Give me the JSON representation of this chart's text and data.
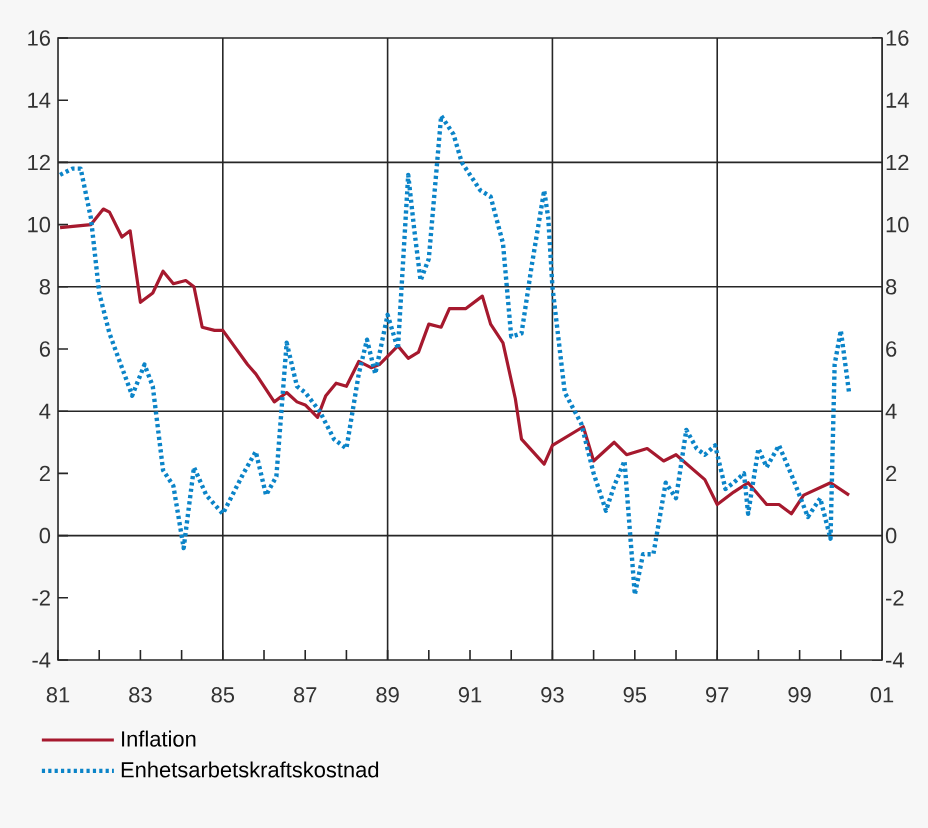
{
  "chart_data": {
    "type": "line",
    "xlim": [
      1981,
      2001
    ],
    "xticks": [
      {
        "value": 1981,
        "label": "81"
      },
      {
        "value": 1982,
        "label": null
      },
      {
        "value": 1983,
        "label": "83"
      },
      {
        "value": 1984,
        "label": null
      },
      {
        "value": 1985,
        "label": "85"
      },
      {
        "value": 1986,
        "label": null
      },
      {
        "value": 1987,
        "label": "87"
      },
      {
        "value": 1988,
        "label": null
      },
      {
        "value": 1989,
        "label": "89"
      },
      {
        "value": 1990,
        "label": null
      },
      {
        "value": 1991,
        "label": "91"
      },
      {
        "value": 1992,
        "label": null
      },
      {
        "value": 1993,
        "label": "93"
      },
      {
        "value": 1994,
        "label": null
      },
      {
        "value": 1995,
        "label": "95"
      },
      {
        "value": 1996,
        "label": null
      },
      {
        "value": 1997,
        "label": "97"
      },
      {
        "value": 1998,
        "label": null
      },
      {
        "value": 1999,
        "label": "99"
      },
      {
        "value": 2000,
        "label": null
      },
      {
        "value": 2001,
        "label": "01"
      }
    ],
    "ylim": [
      -4,
      16
    ],
    "yticks": [
      -4,
      -2,
      0,
      2,
      4,
      6,
      8,
      10,
      12,
      14,
      16
    ],
    "y2lim": [
      -4,
      16
    ],
    "y2ticks": [
      -4,
      -2,
      0,
      2,
      4,
      6,
      8,
      10,
      12,
      14,
      16
    ],
    "grid": true,
    "legend": "bottom",
    "series": [
      {
        "name": "Inflation",
        "color": "#a6192e",
        "line_style": "solid",
        "x": [
          1981.05,
          1981.8,
          1982.1,
          1982.25,
          1982.55,
          1982.75,
          1983.0,
          1983.3,
          1983.55,
          1983.8,
          1984.1,
          1984.3,
          1984.5,
          1984.8,
          1985.0,
          1985.6,
          1985.8,
          1986.25,
          1986.55,
          1986.8,
          1987.0,
          1987.3,
          1987.5,
          1987.75,
          1988.0,
          1988.3,
          1988.6,
          1988.8,
          1989.25,
          1989.5,
          1989.75,
          1990.0,
          1990.3,
          1990.5,
          1990.9,
          1991.3,
          1991.5,
          1991.8,
          1992.1,
          1992.25,
          1992.8,
          1993.0,
          1993.75,
          1994.0,
          1994.5,
          1994.8,
          1995.3,
          1995.7,
          1996.0,
          1996.7,
          1997.0,
          1997.4,
          1997.75,
          1998.2,
          1998.5,
          1998.8,
          1999.1,
          1999.75,
          2000.2
        ],
        "values": [
          9.9,
          10.0,
          10.5,
          10.4,
          9.6,
          9.8,
          7.5,
          7.8,
          8.5,
          8.1,
          8.2,
          8.0,
          6.7,
          6.6,
          6.6,
          5.5,
          5.2,
          4.3,
          4.6,
          4.3,
          4.2,
          3.8,
          4.5,
          4.9,
          4.8,
          5.6,
          5.4,
          5.5,
          6.1,
          5.7,
          5.9,
          6.8,
          6.7,
          7.3,
          7.3,
          7.7,
          6.8,
          6.2,
          4.4,
          3.1,
          2.3,
          2.9,
          3.5,
          2.4,
          3.0,
          2.6,
          2.8,
          2.4,
          2.6,
          1.8,
          1.0,
          1.4,
          1.7,
          1.0,
          1.0,
          0.7,
          1.3,
          1.7,
          1.3
        ]
      },
      {
        "name": "Enhetsarbetskraftskostnad",
        "color": "#0b84c8",
        "line_style": "dotted",
        "x": [
          1981.05,
          1981.35,
          1981.55,
          1981.8,
          1982.0,
          1982.25,
          1982.8,
          1983.1,
          1983.3,
          1983.55,
          1983.8,
          1984.05,
          1984.3,
          1984.6,
          1985.0,
          1985.5,
          1985.8,
          1986.05,
          1986.3,
          1986.55,
          1986.8,
          1987.0,
          1987.35,
          1987.7,
          1988.0,
          1988.3,
          1988.5,
          1988.7,
          1989.0,
          1989.25,
          1989.5,
          1989.65,
          1989.8,
          1990.0,
          1990.3,
          1990.6,
          1990.8,
          1991.25,
          1991.5,
          1991.8,
          1992.0,
          1992.25,
          1992.5,
          1992.8,
          1992.9,
          1993.0,
          1993.3,
          1993.7,
          1994.0,
          1994.3,
          1994.5,
          1994.75,
          1995.0,
          1995.2,
          1995.45,
          1995.75,
          1996.0,
          1996.25,
          1996.5,
          1996.7,
          1996.95,
          1997.2,
          1997.4,
          1997.65,
          1997.75,
          1998.0,
          1998.2,
          1998.5,
          1998.85,
          1999.2,
          1999.5,
          1999.75,
          1999.85,
          2000.0,
          2000.2
        ],
        "values": [
          11.6,
          11.8,
          11.8,
          10.2,
          7.8,
          6.5,
          4.5,
          5.5,
          4.8,
          2.1,
          1.6,
          -0.4,
          2.2,
          1.3,
          0.7,
          2.0,
          2.7,
          1.3,
          1.9,
          6.2,
          4.8,
          4.6,
          4.0,
          3.1,
          2.8,
          5.2,
          6.3,
          5.2,
          7.1,
          6.0,
          11.6,
          9.8,
          8.2,
          8.9,
          13.5,
          12.9,
          12.0,
          11.1,
          10.9,
          9.4,
          6.4,
          6.5,
          8.7,
          11.1,
          10.2,
          8.0,
          4.6,
          3.6,
          2.0,
          0.8,
          1.6,
          2.4,
          -1.9,
          -0.6,
          -0.6,
          1.7,
          1.2,
          3.4,
          2.8,
          2.6,
          2.9,
          1.5,
          1.7,
          2.0,
          0.7,
          2.8,
          2.2,
          2.9,
          1.8,
          0.6,
          1.2,
          -0.1,
          5.5,
          6.6,
          4.6
        ]
      }
    ]
  }
}
